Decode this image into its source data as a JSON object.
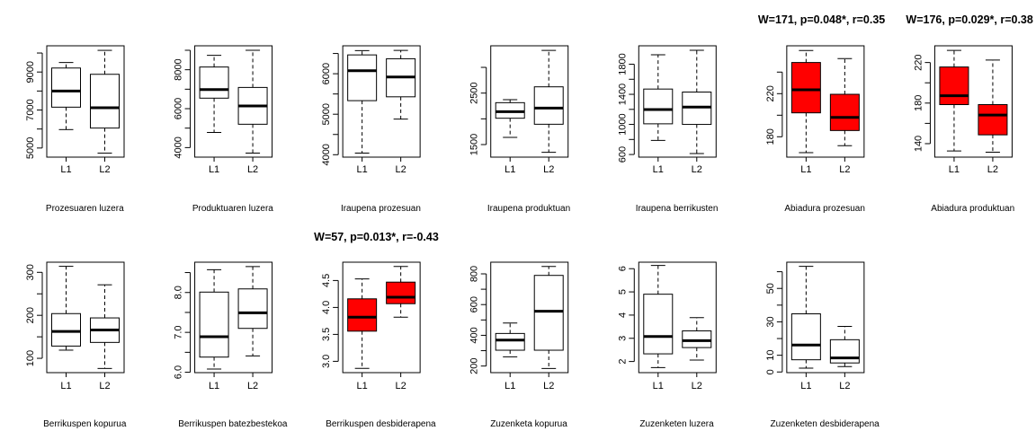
{
  "chart_data": [
    {
      "type": "box",
      "xlabel": "Prozesuaren luzera",
      "title": "",
      "categories": [
        "L1",
        "L2"
      ],
      "fill": "#ffffff",
      "ylim": [
        4520,
        10380
      ],
      "ticks": [
        5000,
        6000,
        7000,
        8000,
        9000,
        10000
      ],
      "tick_labels": [
        "5000",
        "",
        "7000",
        "",
        "9000",
        ""
      ],
      "boxes": [
        {
          "min": 5970,
          "q1": 7150,
          "median": 8000,
          "q3": 9210,
          "max": 9500
        },
        {
          "min": 4730,
          "q1": 6050,
          "median": 7120,
          "q3": 8880,
          "max": 10140
        }
      ]
    },
    {
      "type": "box",
      "xlabel": "Produktuaren luzera",
      "title": "",
      "categories": [
        "L1",
        "L2"
      ],
      "fill": "#ffffff",
      "ylim": [
        3510,
        9230
      ],
      "ticks": [
        4000,
        5000,
        6000,
        7000,
        8000,
        9000
      ],
      "tick_labels": [
        "4000",
        "",
        "6000",
        "",
        "8000",
        ""
      ],
      "boxes": [
        {
          "min": 4780,
          "q1": 6540,
          "median": 6980,
          "q3": 8140,
          "max": 8740
        },
        {
          "min": 3720,
          "q1": 5200,
          "median": 6140,
          "q3": 7090,
          "max": 9000
        }
      ]
    },
    {
      "type": "box",
      "xlabel": "Iraupena prozesuan",
      "title": "",
      "categories": [
        "L1",
        "L2"
      ],
      "fill": "#ffffff",
      "ylim": [
        3940,
        6690
      ],
      "ticks": [
        4000,
        4500,
        5000,
        5500,
        6000,
        6500
      ],
      "tick_labels": [
        "4000",
        "",
        "5000",
        "",
        "6000",
        ""
      ],
      "boxes": [
        {
          "min": 4040,
          "q1": 5335,
          "median": 6075,
          "q3": 6465,
          "max": 6570
        },
        {
          "min": 4880,
          "q1": 5430,
          "median": 5920,
          "q3": 6370,
          "max": 6575
        }
      ]
    },
    {
      "type": "box",
      "xlabel": "Iraupena produktuan",
      "title": "",
      "categories": [
        "L1",
        "L2"
      ],
      "fill": "#ffffff",
      "ylim": [
        1256,
        3419
      ],
      "ticks": [
        1500,
        2000,
        2500,
        3000
      ],
      "tick_labels": [
        "1500",
        "",
        "2500",
        ""
      ],
      "boxes": [
        {
          "min": 1640,
          "q1": 2012,
          "median": 2140,
          "q3": 2314,
          "max": 2372
        },
        {
          "min": 1350,
          "q1": 1895,
          "median": 2209,
          "q3": 2622,
          "max": 3330
        }
      ]
    },
    {
      "type": "box",
      "xlabel": "Iraupena berrikusten",
      "title": "",
      "categories": [
        "L1",
        "L2"
      ],
      "fill": "#ffffff",
      "ylim": [
        565,
        2045
      ],
      "ticks": [
        600,
        800,
        1000,
        1200,
        1400,
        1600,
        1800
      ],
      "tick_labels": [
        "600",
        "",
        "1000",
        "",
        "1400",
        "",
        "1800"
      ],
      "boxes": [
        {
          "min": 788,
          "q1": 1008,
          "median": 1197,
          "q3": 1470,
          "max": 1925
        },
        {
          "min": 612,
          "q1": 1000,
          "median": 1230,
          "q3": 1430,
          "max": 1985
        }
      ]
    },
    {
      "type": "box",
      "xlabel": "Abiadura prozesuan",
      "title": "W=171, p=0.048*, r=0.35",
      "categories": [
        "L1",
        "L2"
      ],
      "fill": "#ff0000",
      "ylim": [
        161.1,
        264.4
      ],
      "ticks": [
        180,
        200,
        220,
        240
      ],
      "tick_labels": [
        "180",
        "",
        "220",
        ""
      ],
      "boxes": [
        {
          "min": 165.3,
          "q1": 202.2,
          "median": 223.6,
          "q3": 248.9,
          "max": 260
        },
        {
          "min": 171.7,
          "q1": 185.8,
          "median": 198,
          "q3": 219.4,
          "max": 252.5
        }
      ]
    },
    {
      "type": "box",
      "xlabel": "Abiadura produktuan",
      "title": "W=176, p=0.029*, r=0.38",
      "categories": [
        "L1",
        "L2"
      ],
      "fill": "#ff0000",
      "ylim": [
        126.7,
        236.5
      ],
      "ticks": [
        140,
        160,
        180,
        200,
        220
      ],
      "tick_labels": [
        "140",
        "",
        "180",
        "",
        "220"
      ],
      "boxes": [
        {
          "min": 132.8,
          "q1": 178.5,
          "median": 187.3,
          "q3": 215.6,
          "max": 232
        },
        {
          "min": 131.6,
          "q1": 148.7,
          "median": 168.2,
          "q3": 178.5,
          "max": 222.4
        }
      ]
    },
    {
      "type": "box",
      "xlabel": "Berrikuspen kopurua",
      "title": "",
      "categories": [
        "L1",
        "L2"
      ],
      "fill": "#ffffff",
      "ylim": [
        66.7,
        323.6
      ],
      "ticks": [
        100,
        150,
        200,
        250,
        300
      ],
      "tick_labels": [
        "100",
        "",
        "200",
        "",
        "300"
      ],
      "boxes": [
        {
          "min": 119,
          "q1": 128.5,
          "median": 162.5,
          "q3": 204,
          "max": 314
        },
        {
          "min": 76.4,
          "q1": 137,
          "median": 166,
          "q3": 194,
          "max": 271
        }
      ]
    },
    {
      "type": "box",
      "xlabel": "Berrikuspen batezbestekoa",
      "title": "",
      "categories": [
        "L1",
        "L2"
      ],
      "fill": "#ffffff",
      "ylim": [
        5.99,
        8.76
      ],
      "ticks": [
        6.0,
        6.5,
        7.0,
        7.5,
        8.0,
        8.5
      ],
      "tick_labels": [
        "6.0",
        "",
        "7.0",
        "",
        "8.0",
        ""
      ],
      "boxes": [
        {
          "min": 6.08,
          "q1": 6.38,
          "median": 6.89,
          "q3": 8.01,
          "max": 8.57
        },
        {
          "min": 6.41,
          "q1": 7.1,
          "median": 7.49,
          "q3": 8.09,
          "max": 8.65
        }
      ]
    },
    {
      "type": "box",
      "xlabel": "Berrikuspen desbiderapena",
      "title": "W=57, p=0.013*, r=-0.43",
      "categories": [
        "L1",
        "L2"
      ],
      "fill": "#ff0000",
      "ylim": [
        2.79,
        4.84
      ],
      "ticks": [
        3.0,
        3.5,
        4.0,
        4.5
      ],
      "tick_labels": [
        "3.0",
        "3.5",
        "4.0",
        "4.5"
      ],
      "boxes": [
        {
          "min": 2.87,
          "q1": 3.56,
          "median": 3.82,
          "q3": 4.16,
          "max": 4.53
        },
        {
          "min": 3.82,
          "q1": 4.07,
          "median": 4.19,
          "q3": 4.47,
          "max": 4.76
        }
      ]
    },
    {
      "type": "box",
      "xlabel": "Zuzenketa kopurua",
      "title": "",
      "categories": [
        "L1",
        "L2"
      ],
      "fill": "#ffffff",
      "ylim": [
        157,
        876
      ],
      "ticks": [
        200,
        300,
        400,
        500,
        600,
        700,
        800
      ],
      "tick_labels": [
        "200",
        "",
        "400",
        "",
        "600",
        "",
        "800"
      ],
      "boxes": [
        {
          "min": 260,
          "q1": 303,
          "median": 369,
          "q3": 412,
          "max": 480
        },
        {
          "min": 184,
          "q1": 303,
          "median": 557,
          "q3": 790,
          "max": 848
        }
      ]
    },
    {
      "type": "box",
      "xlabel": "Zuzenketen luzera",
      "title": "",
      "categories": [
        "L1",
        "L2"
      ],
      "fill": "#ffffff",
      "ylim": [
        1.52,
        6.28
      ],
      "ticks": [
        2,
        3,
        4,
        5,
        6
      ],
      "tick_labels": [
        "2",
        "3",
        "4",
        "5",
        "6"
      ],
      "boxes": [
        {
          "min": 1.74,
          "q1": 2.33,
          "median": 3.08,
          "q3": 4.9,
          "max": 6.14
        },
        {
          "min": 2.06,
          "q1": 2.6,
          "median": 2.9,
          "q3": 3.32,
          "max": 3.89
        }
      ]
    },
    {
      "type": "box",
      "xlabel": "Zuzenketen desbiderapena",
      "title": "",
      "categories": [
        "L1",
        "L2"
      ],
      "fill": "#ffffff",
      "ylim": [
        -0.4,
        65.7
      ],
      "ticks": [
        0,
        10,
        20,
        30,
        40,
        50,
        60
      ],
      "tick_labels": [
        "0",
        "10",
        "",
        "30",
        "",
        "50",
        ""
      ],
      "boxes": [
        {
          "min": 2.3,
          "q1": 7.3,
          "median": 16.1,
          "q3": 34.8,
          "max": 63.2
        },
        {
          "min": 3.2,
          "q1": 5.4,
          "median": 8.4,
          "q3": 19.3,
          "max": 27.3
        }
      ]
    }
  ]
}
